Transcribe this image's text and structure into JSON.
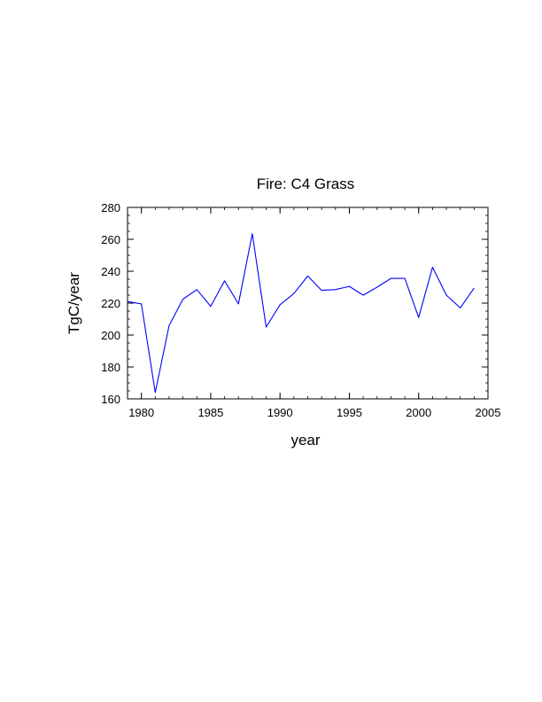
{
  "chart_data": {
    "type": "line",
    "title": "Fire: C4 Grass",
    "xlabel": "year",
    "ylabel": "TgC/year",
    "xlim": [
      1979,
      2005
    ],
    "ylim": [
      160,
      280
    ],
    "x_ticks": [
      1980,
      1985,
      1990,
      1995,
      2000,
      2005
    ],
    "y_ticks": [
      160,
      180,
      200,
      220,
      240,
      260,
      280
    ],
    "grid": false,
    "series": [
      {
        "color": "#0000ff",
        "x": [
          1979,
          1980,
          1981,
          1982,
          1983,
          1984,
          1985,
          1986,
          1987,
          1988,
          1989,
          1990,
          1991,
          1992,
          1993,
          1994,
          1995,
          1996,
          1997,
          1998,
          1999,
          2000,
          2001,
          2002,
          2003,
          2004
        ],
        "y": [
          221,
          219.5,
          164,
          206,
          222.5,
          228.5,
          218,
          234,
          219.5,
          263.5,
          205,
          219,
          226,
          237,
          228,
          228.5,
          230.5,
          225,
          230,
          235.5,
          235.5,
          211,
          242.5,
          225,
          217,
          229.5
        ]
      }
    ]
  }
}
